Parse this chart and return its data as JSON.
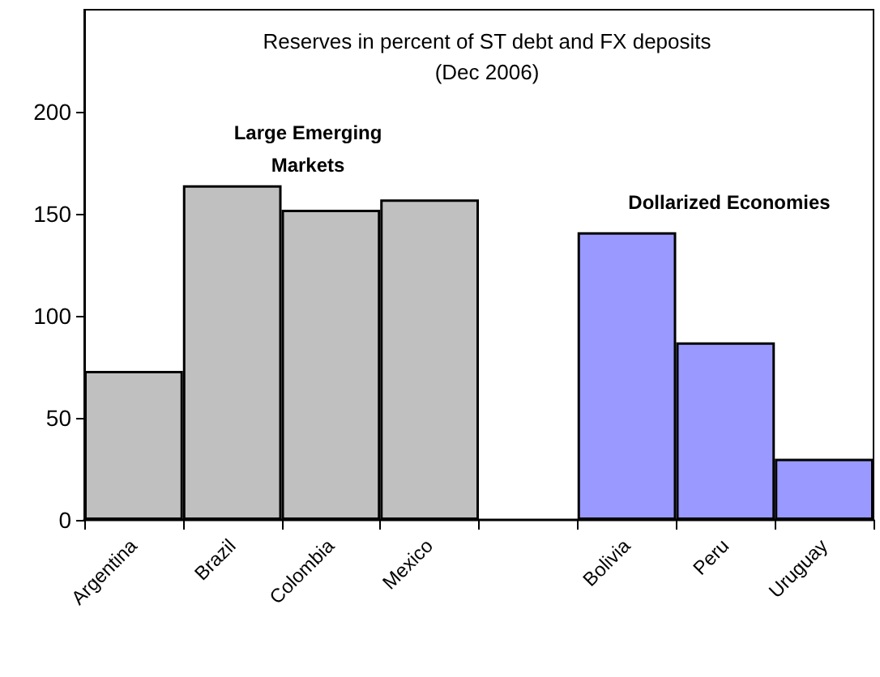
{
  "chart_data": {
    "type": "bar",
    "title": "Reserves in percent of ST debt and FX deposits",
    "subtitle": "(Dec 2006)",
    "categories": [
      "Argentina",
      "Brazil",
      "Colombia",
      "Mexico",
      null,
      "Bolivia",
      "Peru",
      "Uruguay"
    ],
    "values": [
      73,
      164,
      152,
      157,
      null,
      141,
      87,
      30
    ],
    "colors": [
      "#c0c0c0",
      "#c0c0c0",
      "#c0c0c0",
      "#c0c0c0",
      "#c0c0c0",
      "#9999ff",
      "#9999ff",
      "#9999ff"
    ],
    "ylim": [
      0,
      250
    ],
    "yticks": [
      0,
      50,
      100,
      150,
      200
    ],
    "annotations": [
      "Large Emerging\nMarkets",
      "Dollarized Economies"
    ]
  }
}
